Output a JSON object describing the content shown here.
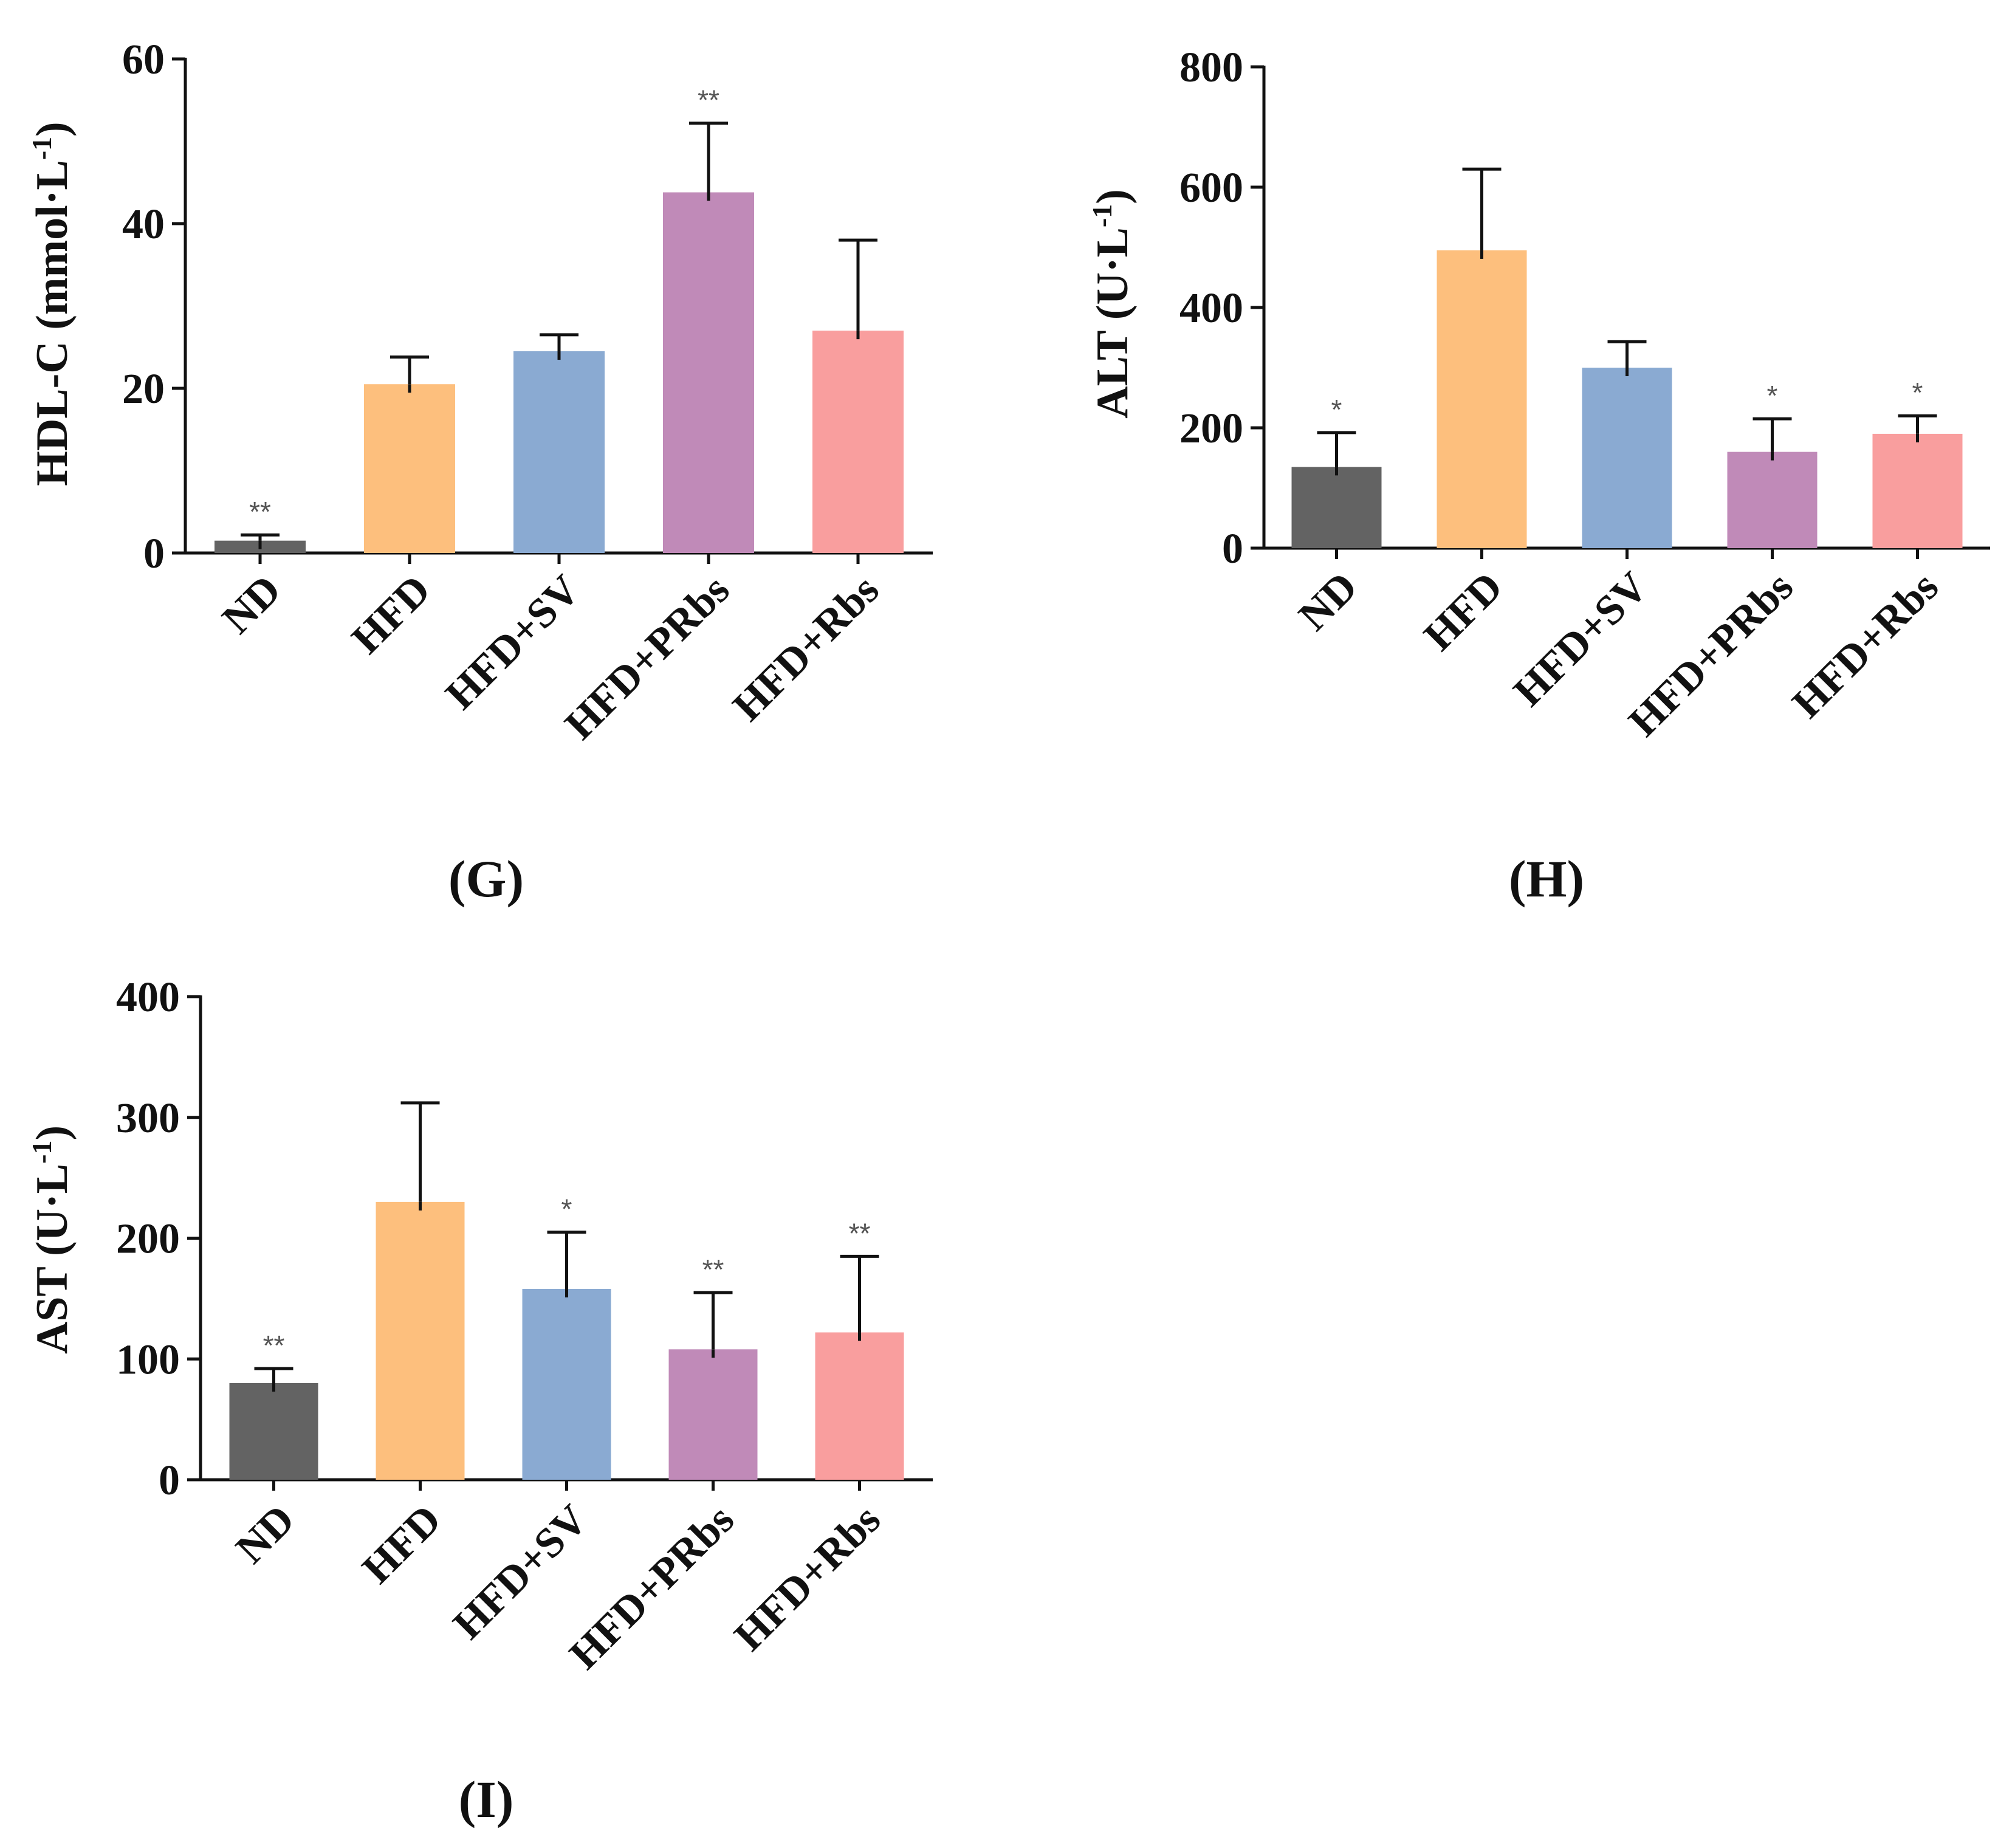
{
  "colors": {
    "bars": [
      "#636363",
      "#FDBF7D",
      "#8AAAD2",
      "#C08AB8",
      "#F99E9E"
    ],
    "axis": "#111111"
  },
  "chart_data": [
    {
      "type": "bar",
      "panel": "(G)",
      "ylabel_main": "HDL-C (mmol·L",
      "ylabel_sup": "-1",
      "ylabel_close": ")",
      "ylim": [
        0,
        60
      ],
      "yticks": [
        0,
        20,
        40,
        60
      ],
      "tick_labels": [
        "0",
        "20",
        "40",
        "60"
      ],
      "categories": [
        "ND",
        "HFD",
        "HFD+SV",
        "HFD+PRbs",
        "HFD+Rbs"
      ],
      "values": [
        1.5,
        20.5,
        24.5,
        43.8,
        27.0
      ],
      "errors": [
        0.7,
        3.3,
        2.0,
        8.4,
        11.0
      ],
      "significance": [
        "**",
        "",
        "",
        "**",
        ""
      ]
    },
    {
      "type": "bar",
      "panel": "(H)",
      "ylabel_main": "ALT (U·L",
      "ylabel_sup": "-1",
      "ylabel_close": ")",
      "ylim": [
        0,
        800
      ],
      "yticks": [
        0,
        200,
        400,
        600,
        800
      ],
      "tick_labels": [
        "0",
        "200",
        "400",
        "600",
        "800"
      ],
      "categories": [
        "ND",
        "HFD",
        "HFD+SV",
        "HFD+PRbs",
        "HFD+Rbs"
      ],
      "values": [
        135,
        495,
        300,
        160,
        190
      ],
      "errors": [
        57,
        135,
        43,
        55,
        30
      ],
      "significance": [
        "*",
        "",
        "",
        "*",
        "*"
      ]
    },
    {
      "type": "bar",
      "panel": "(I)",
      "ylabel_main": "AST (U·L",
      "ylabel_sup": "-1",
      "ylabel_close": ")",
      "ylim": [
        0,
        400
      ],
      "yticks": [
        0,
        100,
        200,
        300,
        400
      ],
      "tick_labels": [
        "0",
        "100",
        "200",
        "300",
        "400"
      ],
      "categories": [
        "ND",
        "HFD",
        "HFD+SV",
        "HFD+PRbs",
        "HFD+Rbs"
      ],
      "values": [
        80,
        230,
        158,
        108,
        122
      ],
      "errors": [
        12,
        82,
        47,
        47,
        63
      ],
      "significance": [
        "**",
        "",
        "*",
        "**",
        "**"
      ]
    }
  ]
}
